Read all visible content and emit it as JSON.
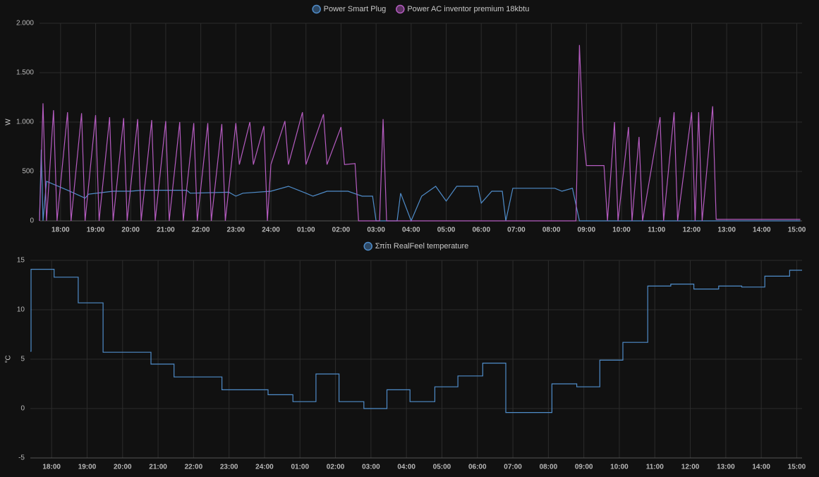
{
  "chart_data": [
    {
      "type": "line",
      "ylabel": "W",
      "xlim": [
        17.4,
        39.15
      ],
      "ylim": [
        0,
        2000
      ],
      "yticks": [
        0,
        500,
        {
          "value": 1000,
          "label": "1.000"
        },
        {
          "value": 1500,
          "label": "1.500"
        },
        {
          "value": 2000,
          "label": "2.000"
        }
      ],
      "xticks": [
        {
          "value": 18,
          "label": "18:00"
        },
        {
          "value": 19,
          "label": "19:00"
        },
        {
          "value": 20,
          "label": "20:00"
        },
        {
          "value": 21,
          "label": "21:00"
        },
        {
          "value": 22,
          "label": "22:00"
        },
        {
          "value": 23,
          "label": "23:00"
        },
        {
          "value": 24,
          "label": "24:00"
        },
        {
          "value": 25,
          "label": "01:00"
        },
        {
          "value": 26,
          "label": "02:00"
        },
        {
          "value": 27,
          "label": "03:00"
        },
        {
          "value": 28,
          "label": "04:00"
        },
        {
          "value": 29,
          "label": "05:00"
        },
        {
          "value": 30,
          "label": "06:00"
        },
        {
          "value": 31,
          "label": "07:00"
        },
        {
          "value": 32,
          "label": "08:00"
        },
        {
          "value": 33,
          "label": "09:00"
        },
        {
          "value": 34,
          "label": "10:00"
        },
        {
          "value": 35,
          "label": "11:00"
        },
        {
          "value": 36,
          "label": "12:00"
        },
        {
          "value": 37,
          "label": "13:00"
        },
        {
          "value": 38,
          "label": "14:00"
        },
        {
          "value": 39,
          "label": "15:00"
        }
      ],
      "grid": true,
      "step": false,
      "series": [
        {
          "name": "Power Smart Plug",
          "color": "#4f8cc9",
          "x": [
            17.4,
            17.45,
            17.5,
            17.6,
            18.2,
            18.7,
            18.8,
            19.5,
            20.0,
            20.3,
            21.6,
            21.7,
            22.8,
            23.0,
            23.2,
            24.0,
            24.5,
            25.0,
            25.2,
            25.6,
            26.2,
            26.6,
            26.9,
            27.0,
            27.6,
            27.7,
            28.0,
            28.3,
            28.7,
            29.0,
            29.3,
            29.9,
            30.0,
            30.3,
            30.6,
            30.7,
            30.9,
            31.6,
            32.1,
            32.3,
            32.6,
            32.8,
            39.1
          ],
          "values": [
            0,
            720,
            0,
            400,
            310,
            230,
            270,
            300,
            300,
            310,
            310,
            280,
            290,
            250,
            280,
            300,
            350,
            280,
            250,
            300,
            300,
            250,
            250,
            0,
            0,
            280,
            0,
            250,
            350,
            200,
            350,
            350,
            180,
            300,
            300,
            0,
            330,
            330,
            330,
            300,
            330,
            0,
            0
          ]
        },
        {
          "name": "Power AC inventor premium 18kbtu",
          "color": "#b55cc0",
          "x": [
            17.4,
            17.5,
            17.6,
            17.8,
            17.9,
            18.2,
            18.3,
            18.6,
            18.7,
            19.0,
            19.1,
            19.4,
            19.5,
            19.8,
            19.9,
            20.2,
            20.3,
            20.6,
            20.7,
            21.0,
            21.1,
            21.4,
            21.5,
            21.8,
            21.9,
            22.2,
            22.3,
            22.6,
            22.7,
            23.0,
            23.1,
            23.4,
            23.5,
            23.8,
            23.9,
            24.0,
            24.4,
            24.5,
            24.9,
            25.0,
            25.5,
            25.6,
            26.0,
            26.1,
            26.4,
            26.5,
            27.1,
            27.2,
            27.3,
            32.7,
            32.8,
            32.9,
            33.0,
            33.5,
            33.6,
            33.8,
            33.9,
            34.2,
            34.3,
            34.5,
            34.6,
            35.1,
            35.2,
            35.5,
            35.6,
            36.0,
            36.1,
            36.2,
            36.3,
            36.6,
            36.7,
            39.1
          ],
          "values": [
            0,
            1190,
            0,
            1120,
            0,
            1100,
            0,
            1090,
            0,
            1070,
            0,
            1050,
            0,
            1040,
            0,
            1030,
            0,
            1020,
            0,
            1010,
            0,
            1000,
            0,
            990,
            0,
            990,
            0,
            980,
            0,
            990,
            570,
            1000,
            570,
            960,
            0,
            570,
            1010,
            570,
            1100,
            570,
            1080,
            570,
            950,
            570,
            580,
            0,
            0,
            1030,
            0,
            0,
            1780,
            900,
            560,
            560,
            0,
            1000,
            0,
            950,
            0,
            850,
            0,
            1050,
            0,
            1100,
            0,
            1100,
            0,
            1100,
            0,
            1160,
            15,
            15
          ]
        }
      ]
    },
    {
      "type": "line",
      "ylabel": "°C",
      "xlim": [
        17.4,
        39.15
      ],
      "ylim": [
        -5,
        15
      ],
      "yticks": [
        -5,
        0,
        5,
        10,
        15
      ],
      "xticks": [
        {
          "value": 18,
          "label": "18:00"
        },
        {
          "value": 19,
          "label": "19:00"
        },
        {
          "value": 20,
          "label": "20:00"
        },
        {
          "value": 21,
          "label": "21:00"
        },
        {
          "value": 22,
          "label": "22:00"
        },
        {
          "value": 23,
          "label": "23:00"
        },
        {
          "value": 24,
          "label": "24:00"
        },
        {
          "value": 25,
          "label": "01:00"
        },
        {
          "value": 26,
          "label": "02:00"
        },
        {
          "value": 27,
          "label": "03:00"
        },
        {
          "value": 28,
          "label": "04:00"
        },
        {
          "value": 29,
          "label": "05:00"
        },
        {
          "value": 30,
          "label": "06:00"
        },
        {
          "value": 31,
          "label": "07:00"
        },
        {
          "value": 32,
          "label": "08:00"
        },
        {
          "value": 33,
          "label": "09:00"
        },
        {
          "value": 34,
          "label": "10:00"
        },
        {
          "value": 35,
          "label": "11:00"
        },
        {
          "value": 36,
          "label": "12:00"
        },
        {
          "value": 37,
          "label": "13:00"
        },
        {
          "value": 38,
          "label": "14:00"
        },
        {
          "value": 39,
          "label": "15:00"
        }
      ],
      "grid": true,
      "step": true,
      "series": [
        {
          "name": "Σπίτι RealFeel temperature",
          "color": "#4f8cc9",
          "x": [
            17.4,
            17.42,
            18.07,
            18.75,
            19.45,
            20.8,
            21.45,
            22.8,
            24.1,
            24.8,
            25.45,
            26.1,
            26.8,
            27.45,
            28.1,
            28.8,
            29.45,
            30.15,
            30.8,
            32.1,
            32.8,
            33.45,
            34.1,
            34.8,
            35.45,
            36.1,
            36.8,
            37.45,
            38.1,
            38.8,
            39.15
          ],
          "values": [
            5.8,
            14.1,
            13.3,
            10.7,
            5.7,
            4.5,
            3.2,
            1.9,
            1.4,
            0.7,
            3.5,
            0.7,
            0,
            1.9,
            0.7,
            2.2,
            3.3,
            4.6,
            -0.4,
            2.5,
            2.2,
            4.9,
            6.7,
            12.4,
            12.6,
            12.1,
            12.4,
            12.3,
            13.4,
            14.0,
            14.0
          ]
        }
      ]
    }
  ]
}
